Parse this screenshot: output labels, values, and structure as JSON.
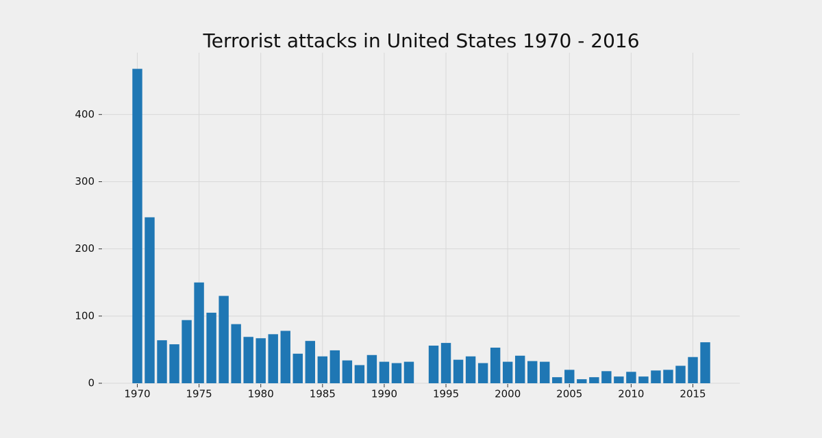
{
  "chart_data": {
    "type": "bar",
    "title": "Terrorist attacks in United States 1970 - 2016",
    "x": [
      1970,
      1971,
      1972,
      1973,
      1974,
      1975,
      1976,
      1977,
      1978,
      1979,
      1980,
      1981,
      1982,
      1983,
      1984,
      1985,
      1986,
      1987,
      1988,
      1989,
      1990,
      1991,
      1992,
      1994,
      1995,
      1996,
      1997,
      1998,
      1999,
      2000,
      2001,
      2002,
      2003,
      2004,
      2005,
      2006,
      2007,
      2008,
      2009,
      2010,
      2011,
      2012,
      2013,
      2014,
      2015,
      2016
    ],
    "values": [
      468,
      247,
      64,
      58,
      94,
      150,
      105,
      130,
      88,
      69,
      67,
      73,
      78,
      44,
      63,
      40,
      49,
      34,
      27,
      42,
      32,
      30,
      32,
      56,
      60,
      35,
      40,
      30,
      53,
      32,
      41,
      33,
      32,
      9,
      20,
      6,
      9,
      18,
      10,
      17,
      10,
      19,
      20,
      26,
      39,
      61
    ],
    "color": "#1f77b4",
    "xlim": [
      1967.2,
      2018.8
    ],
    "xticks": [
      1970,
      1975,
      1980,
      1985,
      1990,
      1995,
      2000,
      2005,
      2010,
      2015
    ],
    "ylim": [
      0,
      492
    ],
    "yticks": [
      0,
      100,
      200,
      300,
      400
    ],
    "grid": true
  }
}
